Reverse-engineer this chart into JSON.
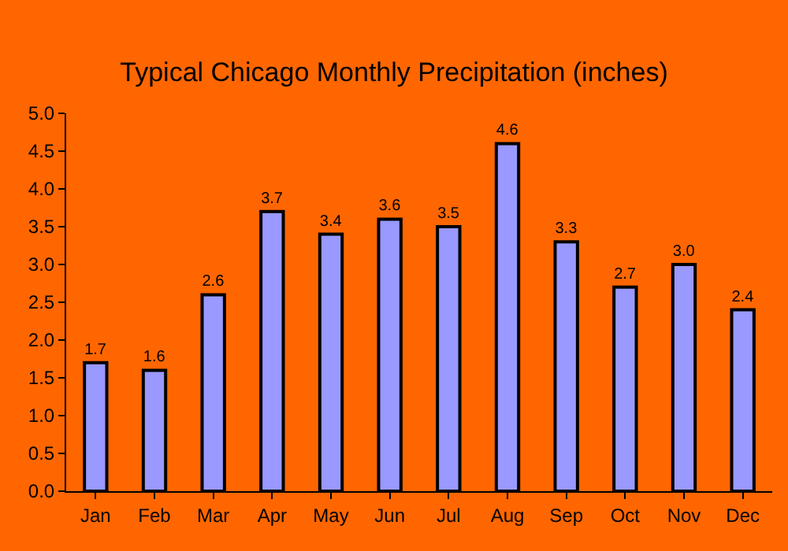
{
  "chart_data": {
    "type": "bar",
    "title": "Typical Chicago Monthly Precipitation (inches)",
    "categories": [
      "Jan",
      "Feb",
      "Mar",
      "Apr",
      "May",
      "Jun",
      "Jul",
      "Aug",
      "Sep",
      "Oct",
      "Nov",
      "Dec"
    ],
    "values": [
      1.7,
      1.6,
      2.6,
      3.7,
      3.4,
      3.6,
      3.5,
      4.6,
      3.3,
      2.7,
      3.0,
      2.4
    ],
    "value_labels": [
      "1.7",
      "1.6",
      "2.6",
      "3.7",
      "3.4",
      "3.6",
      "3.5",
      "4.6",
      "3.3",
      "2.7",
      "3.0",
      "2.4"
    ],
    "color": "#9999ff",
    "ylim": [
      0,
      5
    ],
    "yticks": [
      {
        "value": 0,
        "label": "0.0"
      },
      {
        "value": 0.5,
        "label": "0.5"
      },
      {
        "value": 1,
        "label": "1.0"
      },
      {
        "value": 1.5,
        "label": "1.5"
      },
      {
        "value": 2,
        "label": "2.0"
      },
      {
        "value": 2.5,
        "label": "2.5"
      },
      {
        "value": 3,
        "label": "3.0"
      },
      {
        "value": 3.5,
        "label": "3.5"
      },
      {
        "value": 4,
        "label": "4.0"
      },
      {
        "value": 4.5,
        "label": "4.5"
      },
      {
        "value": 5,
        "label": "5.0"
      }
    ],
    "grid": false,
    "legend": false
  }
}
